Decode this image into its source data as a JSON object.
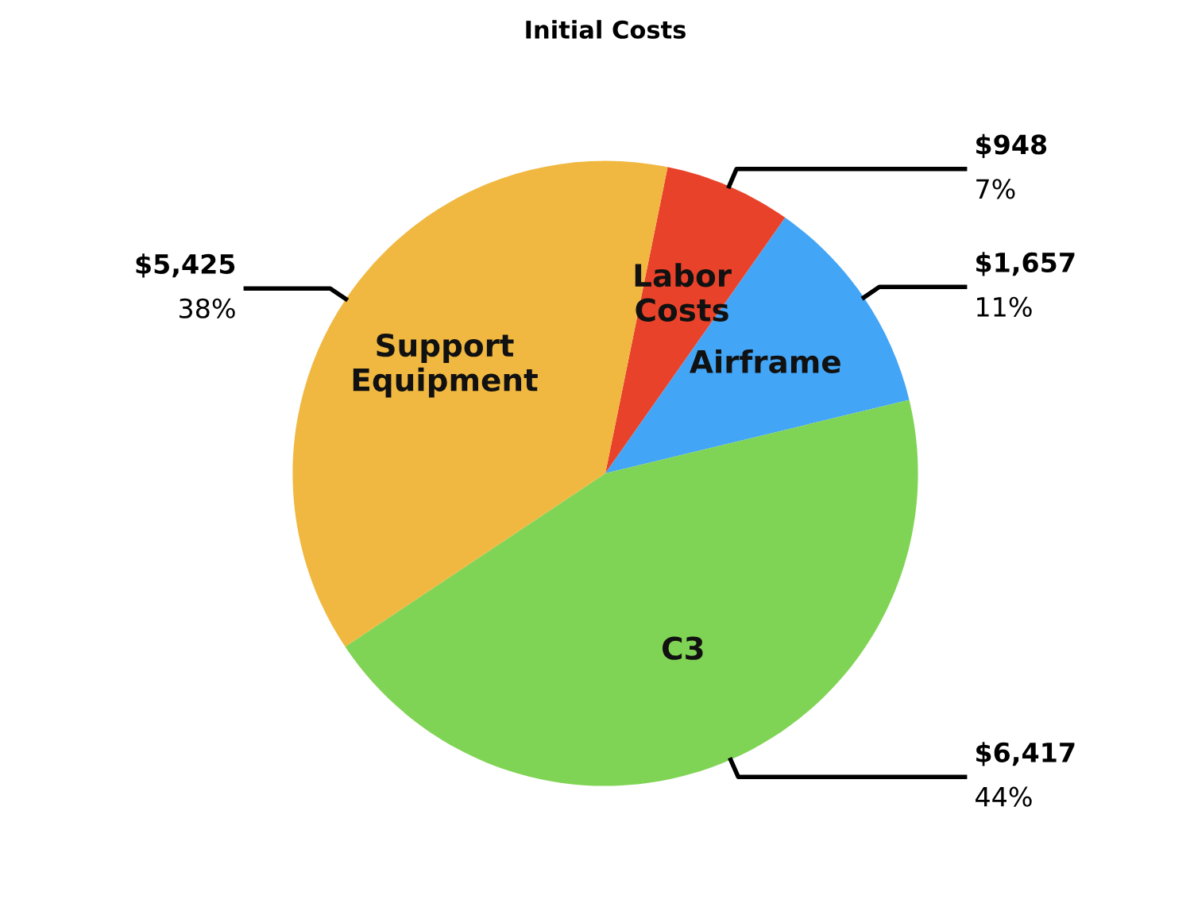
{
  "chart_data": {
    "type": "pie",
    "title": "Initial Costs",
    "categories": [
      "Labor\nCosts",
      "Airframe",
      "C3",
      "Support\nEquipment"
    ],
    "values": [
      948,
      1657,
      6417,
      5425
    ],
    "colors": [
      "#e8432a",
      "#42a5f5",
      "#80d455",
      "#f0b840"
    ],
    "value_labels": [
      "$948\n7%",
      "$1,657\n11%",
      "$6,417\n44%",
      "$5,425\n38%"
    ]
  }
}
